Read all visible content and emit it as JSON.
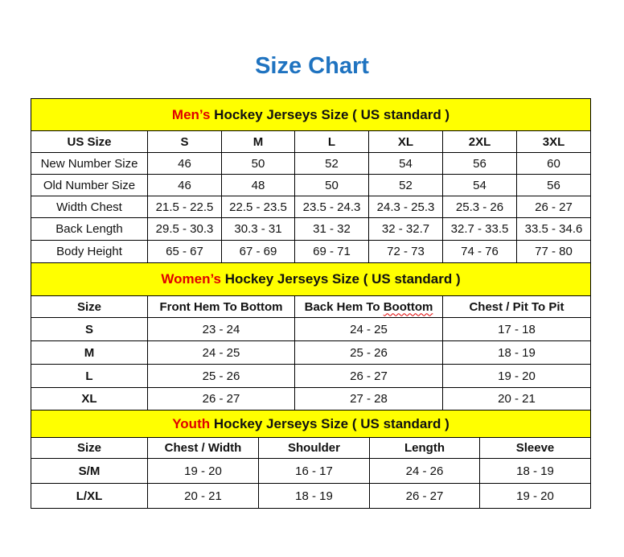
{
  "title": "Size Chart",
  "colors": {
    "title": "#1f73c0",
    "banner_bg": "#ffff00",
    "accent": "#e00000"
  },
  "men": {
    "banner_accent": "Men’s",
    "banner_rest": " Hockey Jerseys Size ( US standard )",
    "headers": [
      "US Size",
      "S",
      "M",
      "L",
      "XL",
      "2XL",
      "3XL"
    ],
    "rows": [
      [
        "New Number Size",
        "46",
        "50",
        "52",
        "54",
        "56",
        "60"
      ],
      [
        "Old Number Size",
        "46",
        "48",
        "50",
        "52",
        "54",
        "56"
      ],
      [
        "Width Chest",
        "21.5 - 22.5",
        "22.5 - 23.5",
        "23.5 - 24.3",
        "24.3 - 25.3",
        "25.3 - 26",
        "26 - 27"
      ],
      [
        "Back Length",
        "29.5 - 30.3",
        "30.3 - 31",
        "31 - 32",
        "32 - 32.7",
        "32.7 - 33.5",
        "33.5 - 34.6"
      ],
      [
        "Body Height",
        "65 - 67",
        "67 - 69",
        "69 - 71",
        "72 - 73",
        "74 - 76",
        "77 - 80"
      ]
    ]
  },
  "women": {
    "banner_accent": "Women’s",
    "banner_rest": " Hockey Jerseys Size ( US standard )",
    "headers": [
      "Size",
      "Front Hem To Bottom",
      "Back Hem To Boottom",
      "Chest / Pit To Pit"
    ],
    "rows": [
      [
        "S",
        "23 - 24",
        "24 - 25",
        "17 - 18"
      ],
      [
        "M",
        "24 - 25",
        "25 - 26",
        "18 - 19"
      ],
      [
        "L",
        "25 - 26",
        "26 - 27",
        "19 - 20"
      ],
      [
        "XL",
        "26 - 27",
        "27 - 28",
        "20 - 21"
      ]
    ]
  },
  "youth": {
    "banner_accent": "Youth",
    "banner_rest": " Hockey Jerseys Size ( US standard )",
    "headers": [
      "Size",
      "Chest / Width",
      "Shoulder",
      "Length",
      "Sleeve"
    ],
    "rows": [
      [
        "S/M",
        "19 - 20",
        "16 - 17",
        "24 - 26",
        "18 - 19"
      ],
      [
        "L/XL",
        "20 - 21",
        "18 - 19",
        "26 - 27",
        "19 - 20"
      ]
    ]
  }
}
